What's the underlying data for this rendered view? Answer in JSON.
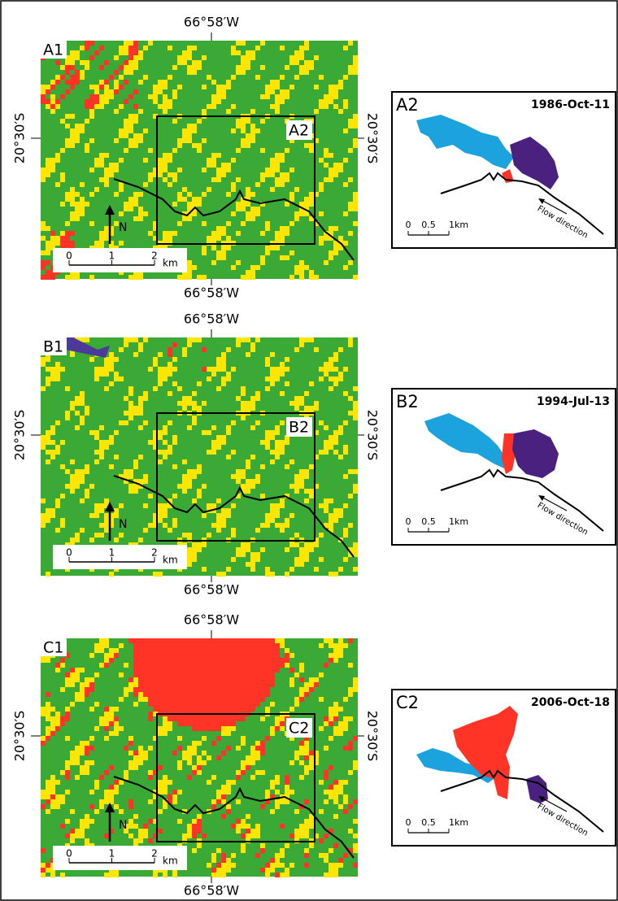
{
  "panels": [
    {
      "map_label": "A1",
      "box_label": "A2",
      "lon_top": "66°58′W",
      "lon_bottom": "66°58′W",
      "lat_left": "20°30′S",
      "lat_right": "20°30′S",
      "north": "N",
      "scale": [
        "0",
        "1",
        "2",
        "km"
      ],
      "inset": {
        "label": "A2",
        "date": "1986-Oct-11",
        "scale": [
          "0",
          "0.5",
          "1km"
        ],
        "flow": "Flow direction"
      }
    },
    {
      "map_label": "B1",
      "box_label": "B2",
      "lon_top": "66°58′W",
      "lon_bottom": "66°58′W",
      "lat_left": "20°30′S",
      "lat_right": "20°30′S",
      "north": "N",
      "scale": [
        "0",
        "1",
        "2",
        "km"
      ],
      "inset": {
        "label": "B2",
        "date": "1994-Jul-13",
        "scale": [
          "0",
          "0.5",
          "1km"
        ],
        "flow": "Flow direction"
      }
    },
    {
      "map_label": "C1",
      "box_label": "C2",
      "lon_top": "66°58′W",
      "lon_bottom": "66°58′W",
      "lat_left": "20°30′S",
      "lat_right": "20°30′S",
      "north": "N",
      "scale": [
        "0",
        "1",
        "2",
        "km"
      ],
      "inset": {
        "label": "C2",
        "date": "2006-Oct-18",
        "scale": [
          "0",
          "0.5",
          "1km"
        ],
        "flow": "Flow direction"
      }
    }
  ]
}
